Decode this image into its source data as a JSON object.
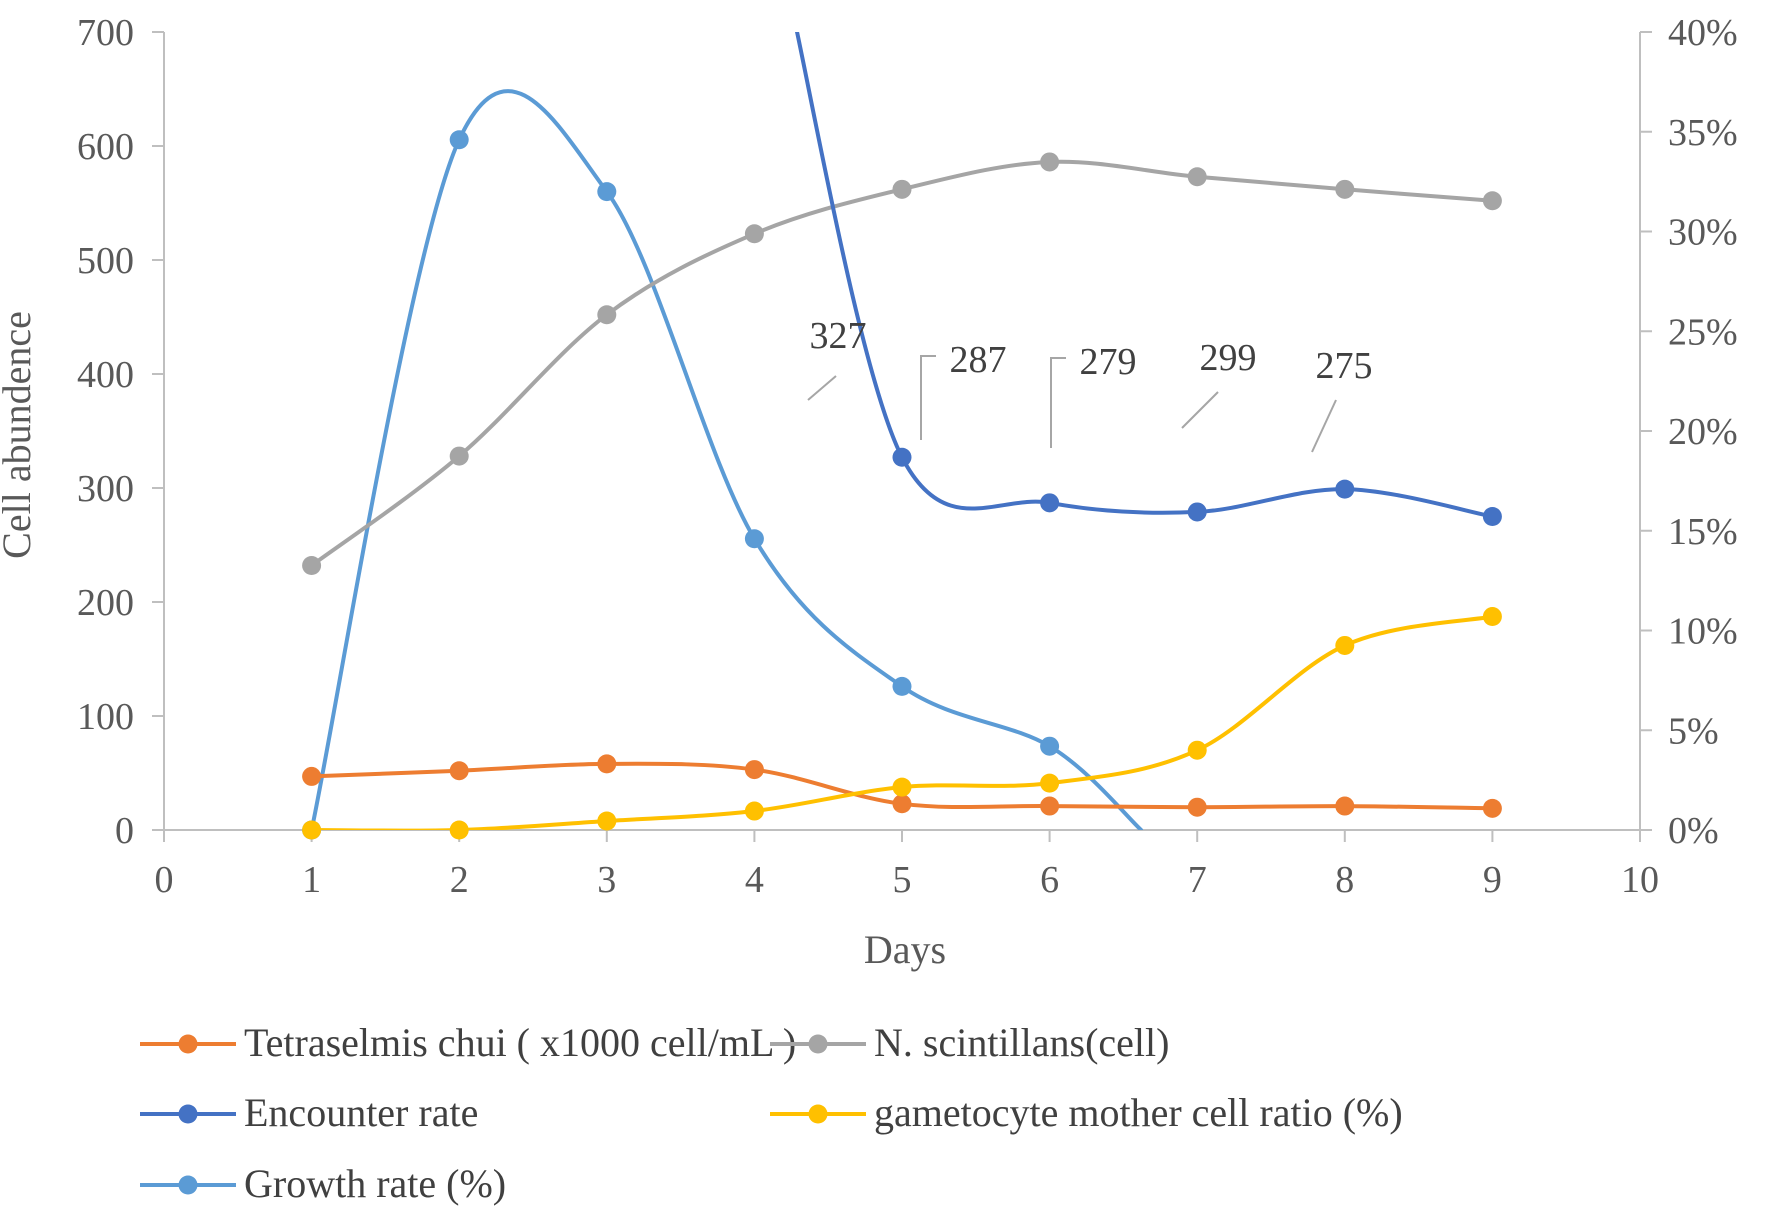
{
  "chart_data": {
    "type": "line",
    "title": "",
    "xlabel": "Days",
    "ylabel": "Cell abundence",
    "xlim": [
      0,
      10
    ],
    "ylim": [
      0,
      700
    ],
    "y2lim": [
      0,
      40
    ],
    "x_ticks": [
      "0",
      "1",
      "2",
      "3",
      "4",
      "5",
      "6",
      "7",
      "8",
      "9",
      "10"
    ],
    "y_ticks": [
      "0",
      "100",
      "200",
      "300",
      "400",
      "500",
      "600",
      "700"
    ],
    "y2_ticks": [
      "0%",
      "5%",
      "10%",
      "15%",
      "20%",
      "25%",
      "30%",
      "35%",
      "40%"
    ],
    "grid": false,
    "legend_position": "bottom",
    "series": [
      {
        "name": "Tetraselmis chui ( x1000 cell/mL )",
        "color": "#ED7D31",
        "axis": "left",
        "x": [
          1,
          2,
          3,
          4,
          5,
          6,
          7,
          8,
          9
        ],
        "values": [
          47,
          52,
          58,
          53,
          23,
          21,
          20,
          21,
          19
        ]
      },
      {
        "name": "N. scintillans(cell)",
        "color": "#A5A5A5",
        "axis": "left",
        "x": [
          1,
          2,
          3,
          4,
          5,
          6,
          7,
          8,
          9
        ],
        "values": [
          232,
          328,
          452,
          523,
          562,
          586,
          573,
          562,
          552
        ]
      },
      {
        "name": "Encounter rate",
        "color": "#4472C4",
        "axis": "left",
        "x": [
          5,
          6,
          7,
          8,
          9
        ],
        "values": [
          327,
          287,
          279,
          299,
          275
        ],
        "entry_from_above_x": 4.23,
        "data_labels": [
          "327",
          "287",
          "279",
          "299",
          "275"
        ]
      },
      {
        "name": "gametocyte mother cell ratio (%)",
        "color": "#FFC000",
        "axis": "right",
        "x": [
          1,
          2,
          3,
          4,
          5,
          6,
          7,
          8,
          9
        ],
        "values": [
          0.0,
          0.0,
          0.45,
          0.95,
          2.15,
          2.35,
          4.0,
          9.25,
          10.7
        ]
      },
      {
        "name": "Growth rate (%)",
        "color": "#5B9BD5",
        "axis": "right",
        "x": [
          1,
          2,
          3,
          4,
          5,
          6
        ],
        "values": [
          0.0,
          34.6,
          32.0,
          14.6,
          7.2,
          4.2
        ],
        "exit_to_zero_x": 6.62
      }
    ],
    "legend_rows": [
      [
        0,
        1
      ],
      [
        2,
        3
      ],
      [
        4
      ]
    ]
  }
}
